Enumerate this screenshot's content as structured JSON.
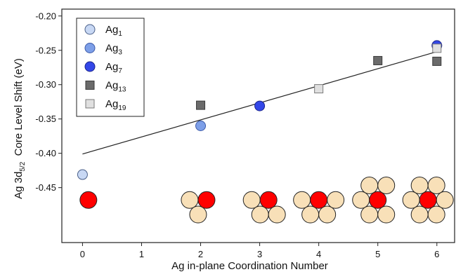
{
  "chart_data": {
    "type": "scatter",
    "xlabel": "Ag in-plane Coordination Number",
    "ylabel_main": "Ag 3d",
    "ylabel_sub": "5/2",
    "ylabel_rest": "Core Level Shift (eV)",
    "xlim": [
      -0.35,
      6.3
    ],
    "ylim": [
      -0.53,
      -0.19
    ],
    "x_ticks": [
      {
        "value": 0,
        "label": "0"
      },
      {
        "value": 1,
        "label": "1"
      },
      {
        "value": 2,
        "label": "2"
      },
      {
        "value": 3,
        "label": "3"
      },
      {
        "value": 4,
        "label": "4"
      },
      {
        "value": 5,
        "label": "5"
      },
      {
        "value": 6,
        "label": "6"
      }
    ],
    "y_ticks": [
      {
        "value": -0.2,
        "label": "-0.20"
      },
      {
        "value": -0.25,
        "label": "-0.25"
      },
      {
        "value": -0.3,
        "label": "-0.30"
      },
      {
        "value": -0.35,
        "label": "-0.35"
      },
      {
        "value": -0.4,
        "label": "-0.40"
      },
      {
        "value": -0.45,
        "label": "-0.45"
      }
    ],
    "legend_position": "top-left",
    "series": [
      {
        "name": "Ag",
        "sub": "1",
        "marker": "circle",
        "fill": "#c8d8f4",
        "stroke": "#4a5f88",
        "points": [
          {
            "x": 0,
            "y": -0.431
          }
        ]
      },
      {
        "name": "Ag",
        "sub": "3",
        "marker": "circle",
        "fill": "#7d9fe8",
        "stroke": "#3c5aa8",
        "points": [
          {
            "x": 2,
            "y": -0.36
          }
        ]
      },
      {
        "name": "Ag",
        "sub": "7",
        "marker": "circle",
        "fill": "#3347e8",
        "stroke": "#1a248a",
        "points": [
          {
            "x": 3,
            "y": -0.331
          },
          {
            "x": 6,
            "y": -0.243
          }
        ]
      },
      {
        "name": "Ag",
        "sub": "13",
        "marker": "square",
        "fill": "#6b6b6b",
        "stroke": "#3a3a3a",
        "points": [
          {
            "x": 2,
            "y": -0.33
          },
          {
            "x": 5,
            "y": -0.265
          },
          {
            "x": 6,
            "y": -0.266
          }
        ]
      },
      {
        "name": "Ag",
        "sub": "19",
        "marker": "square",
        "fill": "#e0e0e0",
        "stroke": "#7a7a7a",
        "points": [
          {
            "x": 4,
            "y": -0.306
          },
          {
            "x": 6,
            "y": -0.247
          }
        ]
      }
    ],
    "fit_line": {
      "x": [
        0,
        6
      ],
      "y": [
        -0.401,
        -0.252
      ]
    },
    "cluster_icons": {
      "y": -0.468,
      "red": "#ff0000",
      "cream": "#f8e0b8",
      "items": [
        {
          "x": 0.1,
          "neighbors": 0
        },
        {
          "x": 2.1,
          "neighbors": 2
        },
        {
          "x": 3.15,
          "neighbors": 3
        },
        {
          "x": 4.0,
          "neighbors": 4
        },
        {
          "x": 5.0,
          "neighbors": 5
        },
        {
          "x": 5.85,
          "neighbors": 6
        }
      ]
    }
  }
}
